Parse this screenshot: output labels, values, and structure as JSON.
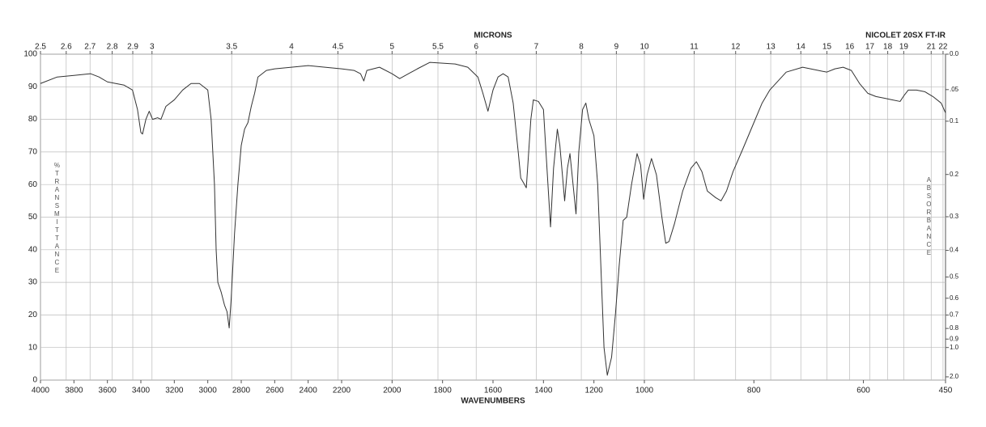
{
  "chart_data": {
    "type": "line",
    "title": "NICOLET 20SX FT-IR",
    "top_axis_label": "MICRONS",
    "xlabel": "WAVENUMBERS",
    "ylabel": "%TRANSMITTANCE",
    "y2label": "ABSORBANCE",
    "color": "#333333",
    "grid": true,
    "xlim": [
      4000,
      450
    ],
    "xscale_breaks": [
      4000,
      2200,
      1000,
      450
    ],
    "xticks": [
      4000,
      3800,
      3600,
      3400,
      3200,
      3000,
      2800,
      2600,
      2400,
      2200,
      2000,
      1800,
      1600,
      1400,
      1200,
      1000,
      800,
      600,
      450
    ],
    "top_ticks": [
      2.5,
      2.6,
      2.7,
      2.8,
      2.9,
      3,
      3.5,
      4,
      4.5,
      5,
      5.5,
      6,
      7,
      8,
      9,
      10,
      11,
      12,
      13,
      14,
      15,
      16,
      17,
      18,
      19,
      21,
      22
    ],
    "ylim": [
      0,
      100
    ],
    "yticks": [
      0,
      10,
      20,
      30,
      40,
      50,
      60,
      70,
      80,
      90,
      100
    ],
    "y2scale": "absorbance",
    "y2ticks": [
      {
        "value": 0,
        "label": "0.0"
      },
      {
        "value": 0.05,
        "label": ".05"
      },
      0.1,
      0.2,
      0.3,
      0.4,
      0.5,
      0.6,
      0.7,
      0.8,
      0.9,
      {
        "value": 1,
        "label": "1.0"
      },
      {
        "value": 2,
        "label": "2.0"
      }
    ],
    "x": [
      4000,
      3900,
      3800,
      3700,
      3650,
      3600,
      3500,
      3450,
      3420,
      3400,
      3390,
      3370,
      3350,
      3330,
      3300,
      3280,
      3250,
      3200,
      3150,
      3100,
      3050,
      3000,
      2980,
      2960,
      2950,
      2940,
      2920,
      2900,
      2885,
      2872,
      2860,
      2840,
      2820,
      2800,
      2780,
      2760,
      2740,
      2720,
      2700,
      2650,
      2600,
      2500,
      2400,
      2300,
      2200,
      2150,
      2125,
      2112,
      2100,
      2050,
      2000,
      1970,
      1900,
      1850,
      1750,
      1700,
      1660,
      1640,
      1620,
      1600,
      1580,
      1560,
      1540,
      1520,
      1500,
      1490,
      1475,
      1468,
      1450,
      1440,
      1420,
      1400,
      1390,
      1372,
      1360,
      1345,
      1335,
      1316,
      1305,
      1295,
      1271,
      1260,
      1245,
      1232,
      1220,
      1200,
      1185,
      1170,
      1160,
      1147,
      1130,
      1115,
      1100,
      1084,
      1070,
      1051,
      1029,
      1015,
      1003,
      995,
      987,
      978,
      968,
      961,
      955,
      945,
      930,
      915,
      905,
      895,
      885,
      870,
      860,
      850,
      838,
      820,
      800,
      785,
      771,
      741,
      711,
      682,
      667,
      652,
      637,
      622,
      607,
      592,
      577,
      562,
      548,
      533,
      525,
      518,
      503,
      488,
      473,
      458,
      450
    ],
    "values": [
      91,
      93,
      93.5,
      94,
      93,
      91.5,
      90.5,
      89,
      83,
      76,
      75.5,
      80,
      82.5,
      80,
      80.5,
      80,
      84,
      86,
      89,
      91,
      91,
      89,
      80,
      60,
      40,
      30,
      27,
      23,
      21,
      16,
      25,
      45,
      60,
      72,
      77,
      79,
      84,
      88,
      93,
      95,
      95.5,
      96,
      96.5,
      96,
      95.5,
      95,
      94,
      91.8,
      95,
      96,
      94,
      92.5,
      95.5,
      97.5,
      97,
      96,
      93,
      88,
      82.5,
      89,
      93,
      94,
      93,
      85,
      70,
      62,
      60,
      59,
      80,
      86,
      85.5,
      83,
      70,
      47,
      65,
      77,
      72,
      55,
      65,
      69.5,
      51,
      70,
      83,
      85,
      80,
      75,
      60,
      30,
      10,
      1.5,
      7,
      20,
      35,
      49,
      50,
      60,
      69.5,
      66,
      55.5,
      63,
      68,
      63,
      50,
      42,
      42.5,
      48,
      58,
      65,
      67,
      64,
      58,
      56,
      55,
      58,
      64,
      71,
      79,
      85,
      89,
      94.5,
      96,
      95,
      94.5,
      95.5,
      96,
      95,
      91,
      88,
      87,
      86.5,
      86,
      85.5,
      87.5,
      89,
      89,
      88.5,
      87,
      85,
      82
    ]
  }
}
